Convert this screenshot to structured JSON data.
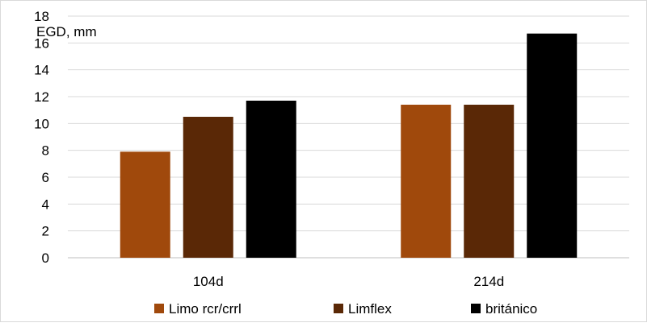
{
  "chart_data": {
    "type": "bar",
    "title": "",
    "xlabel": "",
    "ylabel": "EGD, mm",
    "ylim": [
      0,
      18
    ],
    "yticks": [
      0,
      2,
      4,
      6,
      8,
      10,
      12,
      14,
      16,
      18
    ],
    "categories": [
      "104d",
      "214d"
    ],
    "series": [
      {
        "name": "Limo rcr/crrl",
        "color": "#a0490c",
        "values": [
          7.9,
          11.4
        ]
      },
      {
        "name": "Limflex",
        "color": "#5a2806",
        "values": [
          10.5,
          11.4
        ]
      },
      {
        "name": "británico",
        "color": "#000000",
        "values": [
          11.7,
          16.7
        ]
      }
    ],
    "grid": true,
    "legend": "bottom"
  }
}
